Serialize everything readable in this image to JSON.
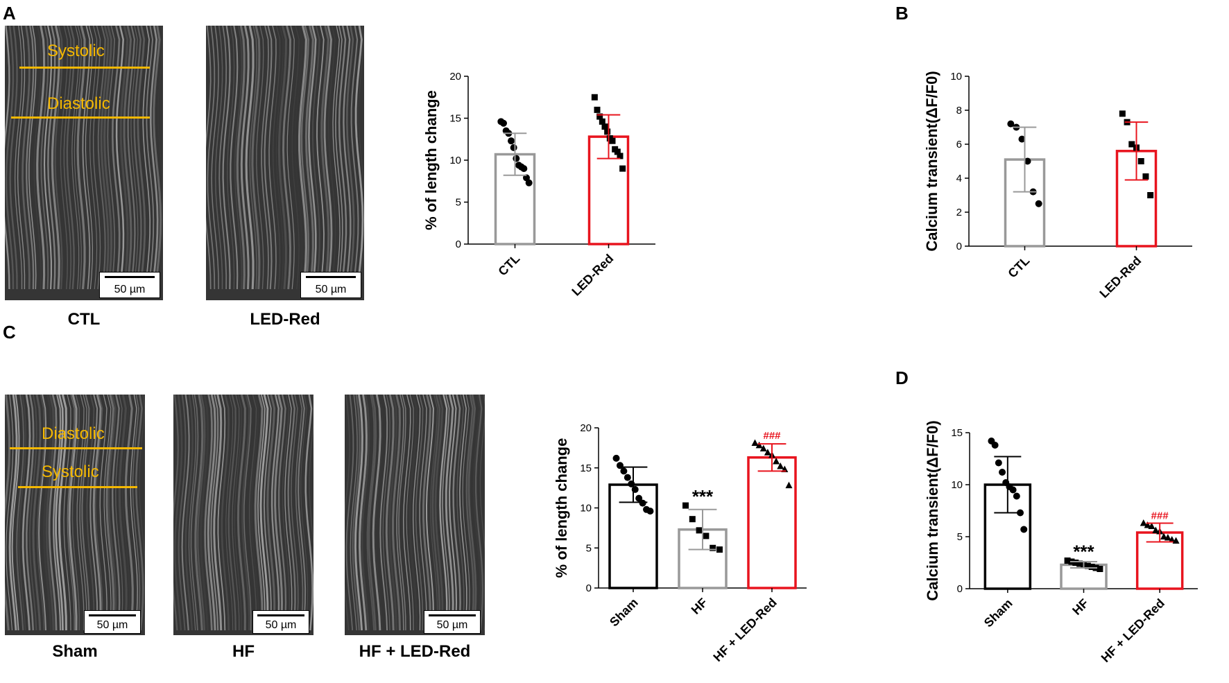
{
  "panels": {
    "A": {
      "letter": "A",
      "conditions": [
        "CTL",
        "LED-Red"
      ],
      "lines": [
        "Systolic",
        "Diastolic"
      ],
      "scalebar": "50 µm"
    },
    "B": {
      "letter": "B"
    },
    "C": {
      "letter": "C",
      "conditions": [
        "Sham",
        "HF",
        "HF + LED-Red"
      ],
      "lines": [
        "Diastolic",
        "Systolic"
      ],
      "scalebar": "50 µm"
    },
    "D": {
      "letter": "D"
    }
  },
  "colors": {
    "black": "#000000",
    "gray": "#999999",
    "red": "#e8141e",
    "orange": "#f5b800"
  },
  "chart_data": [
    {
      "id": "A-length",
      "type": "bar",
      "title": "",
      "ylabel": "% of length change",
      "xlabel": "",
      "ylim": [
        0,
        20
      ],
      "yticks": [
        0,
        5,
        10,
        15,
        20
      ],
      "categories": [
        "CTL",
        "LED-Red"
      ],
      "values": [
        10.7,
        12.8
      ],
      "errors": [
        2.5,
        2.6
      ],
      "bar_colors": [
        "#999999",
        "#e8141e"
      ],
      "markers": [
        "circle",
        "square"
      ],
      "points": [
        [
          14.6,
          14.4,
          13.5,
          13.2,
          12.3,
          11.5,
          10.2,
          9.4,
          9.2,
          9.0,
          7.9,
          7.3
        ],
        [
          17.5,
          16.0,
          15.2,
          14.6,
          14.0,
          13.4,
          12.6,
          12.3,
          11.3,
          11.0,
          10.5,
          9.0
        ]
      ],
      "annotations": [
        "",
        ""
      ],
      "label_rotation": -45
    },
    {
      "id": "B-calcium",
      "type": "bar",
      "title": "",
      "ylabel": "Calcium transient(ΔF/F0)",
      "xlabel": "",
      "ylim": [
        0,
        10
      ],
      "yticks": [
        0,
        2,
        4,
        6,
        8,
        10
      ],
      "categories": [
        "CTL",
        "LED-Red"
      ],
      "values": [
        5.1,
        5.6
      ],
      "errors": [
        1.9,
        1.7
      ],
      "bar_colors": [
        "#999999",
        "#e8141e"
      ],
      "markers": [
        "circle",
        "square"
      ],
      "points": [
        [
          7.2,
          7.0,
          6.3,
          5.0,
          3.2,
          2.5
        ],
        [
          7.8,
          7.3,
          6.0,
          5.8,
          5.0,
          4.1,
          3.0
        ]
      ],
      "annotations": [
        "",
        ""
      ],
      "label_rotation": -45
    },
    {
      "id": "C-length",
      "type": "bar",
      "title": "",
      "ylabel": "% of length change",
      "xlabel": "",
      "ylim": [
        0,
        20
      ],
      "yticks": [
        0,
        5,
        10,
        15,
        20
      ],
      "categories": [
        "Sham",
        "HF",
        "HF + LED-Red"
      ],
      "values": [
        12.9,
        7.3,
        16.3
      ],
      "errors": [
        2.2,
        2.5,
        1.7
      ],
      "bar_colors": [
        "#000000",
        "#999999",
        "#e8141e"
      ],
      "markers": [
        "circle",
        "square",
        "triangle"
      ],
      "points": [
        [
          16.2,
          15.3,
          14.6,
          13.8,
          13.0,
          12.3,
          11.2,
          10.6,
          9.8,
          9.6
        ],
        [
          10.3,
          8.6,
          7.2,
          6.5,
          5.0,
          4.8
        ],
        [
          18.1,
          17.8,
          17.4,
          16.9,
          16.6,
          15.8,
          15.2,
          14.8,
          12.8
        ]
      ],
      "annotations": [
        "",
        "***",
        "###"
      ],
      "label_rotation": -45
    },
    {
      "id": "D-calcium",
      "type": "bar",
      "title": "",
      "ylabel": "Calcium transient(ΔF/F0)",
      "xlabel": "",
      "ylim": [
        0,
        15
      ],
      "yticks": [
        0,
        5,
        10,
        15
      ],
      "categories": [
        "Sham",
        "HF",
        "HF + LED-Red"
      ],
      "values": [
        10.0,
        2.3,
        5.4
      ],
      "errors": [
        2.7,
        0.3,
        0.9
      ],
      "bar_colors": [
        "#000000",
        "#999999",
        "#e8141e"
      ],
      "markers": [
        "circle",
        "square",
        "triangle"
      ],
      "points": [
        [
          14.2,
          13.8,
          12.1,
          11.2,
          10.2,
          9.8,
          9.5,
          8.9,
          7.3,
          5.7
        ],
        [
          2.7,
          2.6,
          2.5,
          2.4,
          2.3,
          2.2,
          2.1,
          2.0,
          1.9
        ],
        [
          6.3,
          6.1,
          6.0,
          5.6,
          5.5,
          5.0,
          4.9,
          4.7,
          4.6
        ]
      ],
      "annotations": [
        "",
        "***",
        "###"
      ],
      "label_rotation": -45
    }
  ]
}
